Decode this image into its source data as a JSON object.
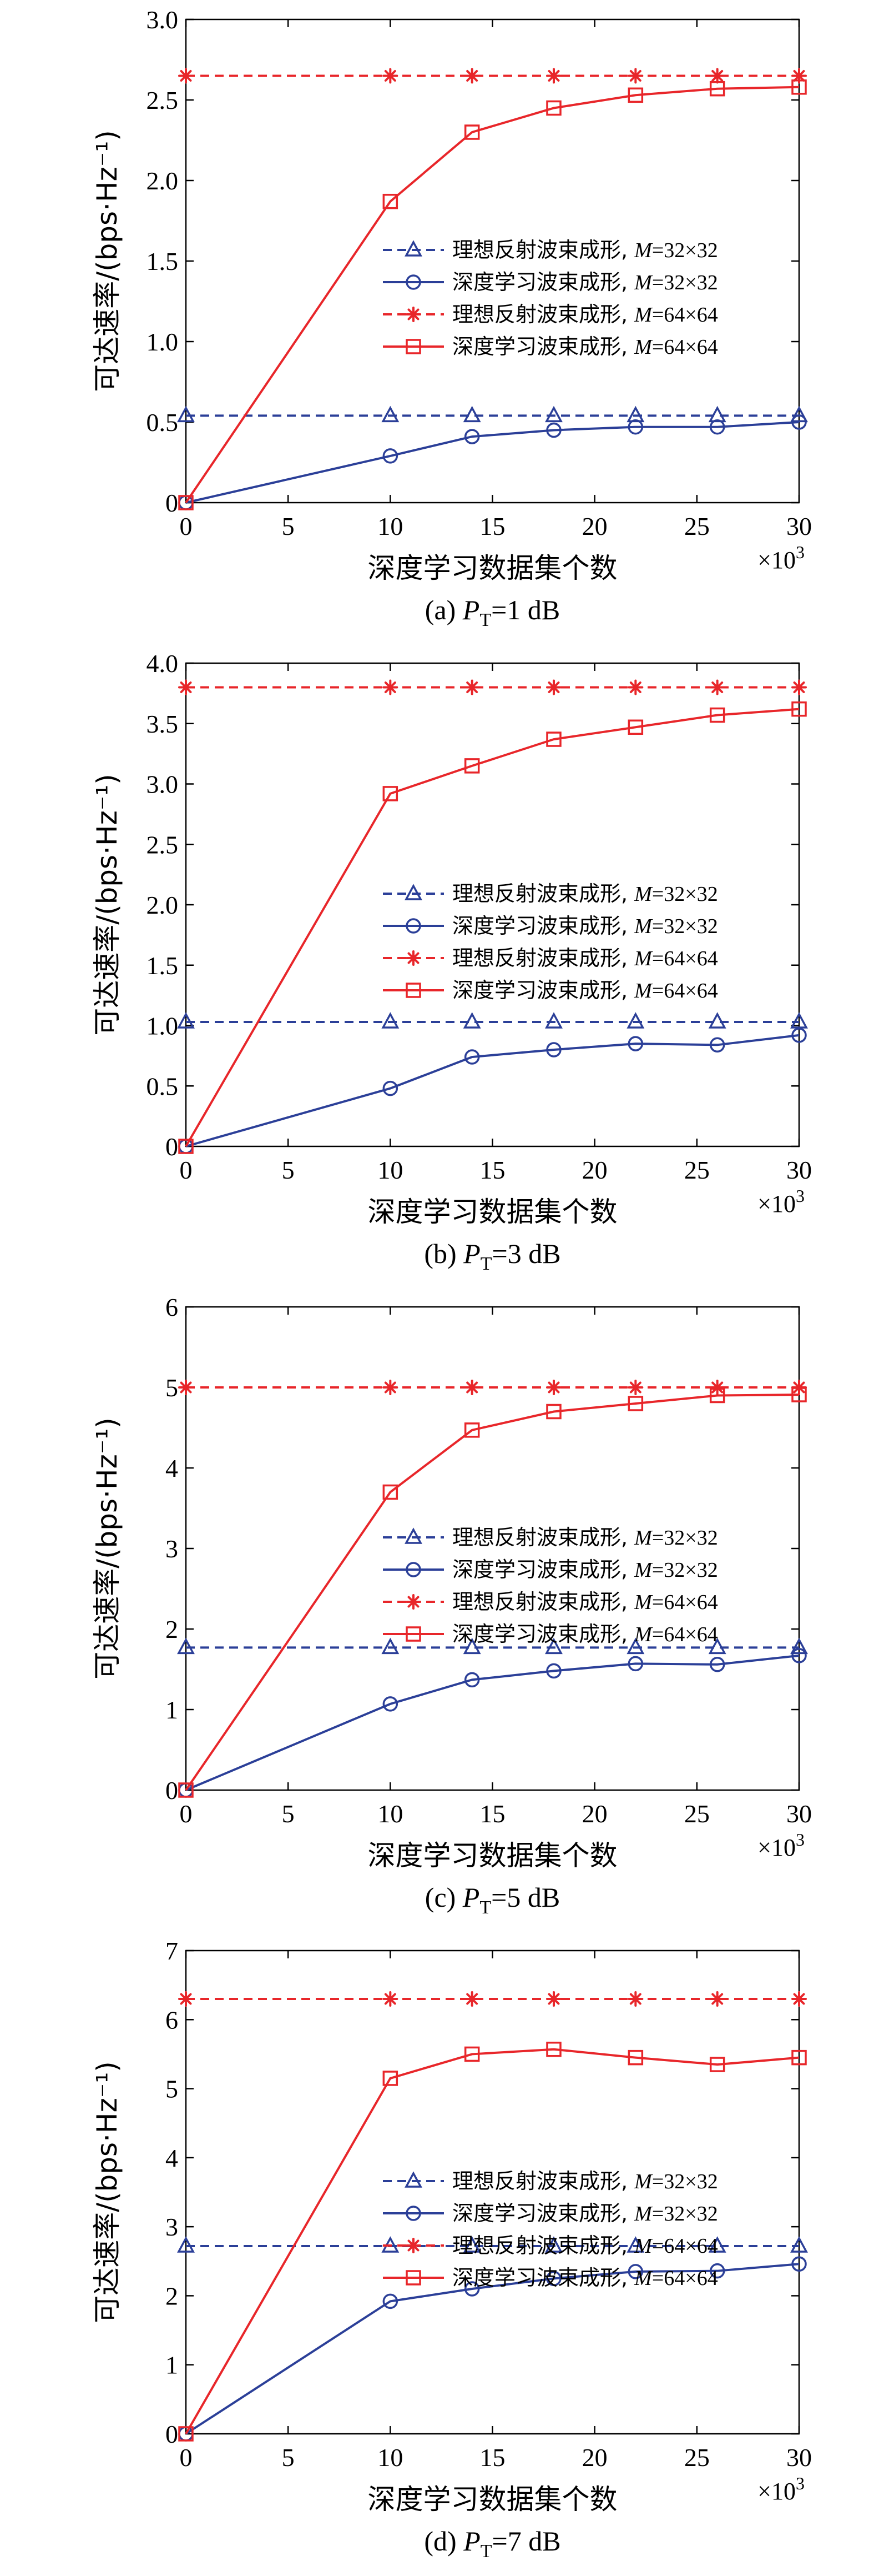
{
  "chart_data": [
    {
      "type": "line",
      "caption": {
        "prefix": "(a) ",
        "symbol": "P",
        "subscript": "T",
        "suffix": "=1 dB"
      },
      "xlabel": "深度学习数据集个数",
      "ylabel": "可达速率/(bps·Hz⁻¹)",
      "x_multiplier": {
        "base": "×10",
        "exp": "3"
      },
      "xlim": [
        0,
        30
      ],
      "ylim": [
        0,
        3.0
      ],
      "xticks": [
        0,
        5,
        10,
        15,
        20,
        25,
        30
      ],
      "yticks": [
        "0",
        "0.5",
        "1.0",
        "1.5",
        "2.0",
        "2.5",
        "3.0"
      ],
      "series": [
        {
          "name": "理想反射波束成形, ",
          "name_var": "M",
          "name_dims": "=32×32",
          "color": "#2b3f98",
          "dash": true,
          "marker": "triangle",
          "x": [
            0,
            10,
            14,
            18,
            22,
            26,
            30
          ],
          "values": [
            0.54,
            0.54,
            0.54,
            0.54,
            0.54,
            0.54,
            0.54
          ]
        },
        {
          "name": "深度学习波束成形, ",
          "name_var": "M",
          "name_dims": "=32×32",
          "color": "#2b3f98",
          "dash": false,
          "marker": "circle",
          "x": [
            0,
            10,
            14,
            18,
            22,
            26,
            30
          ],
          "values": [
            0,
            0.29,
            0.41,
            0.45,
            0.47,
            0.47,
            0.5
          ]
        },
        {
          "name": "理想反射波束成形, ",
          "name_var": "M",
          "name_dims": "=64×64",
          "color": "#e8262a",
          "dash": true,
          "marker": "star",
          "x": [
            0,
            10,
            14,
            18,
            22,
            26,
            30
          ],
          "values": [
            2.65,
            2.65,
            2.65,
            2.65,
            2.65,
            2.65,
            2.65
          ]
        },
        {
          "name": "深度学习波束成形, ",
          "name_var": "M",
          "name_dims": "=64×64",
          "color": "#e8262a",
          "dash": false,
          "marker": "square",
          "x": [
            0,
            10,
            14,
            18,
            22,
            26,
            30
          ],
          "values": [
            0,
            1.87,
            2.3,
            2.45,
            2.53,
            2.57,
            2.58
          ]
        }
      ]
    },
    {
      "type": "line",
      "caption": {
        "prefix": "(b) ",
        "symbol": "P",
        "subscript": "T",
        "suffix": "=3 dB"
      },
      "xlabel": "深度学习数据集个数",
      "ylabel": "可达速率/(bps·Hz⁻¹)",
      "x_multiplier": {
        "base": "×10",
        "exp": "3"
      },
      "xlim": [
        0,
        30
      ],
      "ylim": [
        0,
        4.0
      ],
      "xticks": [
        0,
        5,
        10,
        15,
        20,
        25,
        30
      ],
      "yticks": [
        "0",
        "0.5",
        "1.0",
        "1.5",
        "2.0",
        "2.5",
        "3.0",
        "3.5",
        "4.0"
      ],
      "series": [
        {
          "name": "理想反射波束成形, ",
          "name_var": "M",
          "name_dims": "=32×32",
          "color": "#2b3f98",
          "dash": true,
          "marker": "triangle",
          "x": [
            0,
            10,
            14,
            18,
            22,
            26,
            30
          ],
          "values": [
            1.03,
            1.03,
            1.03,
            1.03,
            1.03,
            1.03,
            1.03
          ]
        },
        {
          "name": "深度学习波束成形, ",
          "name_var": "M",
          "name_dims": "=32×32",
          "color": "#2b3f98",
          "dash": false,
          "marker": "circle",
          "x": [
            0,
            10,
            14,
            18,
            22,
            26,
            30
          ],
          "values": [
            0,
            0.48,
            0.74,
            0.8,
            0.85,
            0.84,
            0.92
          ]
        },
        {
          "name": "理想反射波束成形, ",
          "name_var": "M",
          "name_dims": "=64×64",
          "color": "#e8262a",
          "dash": true,
          "marker": "star",
          "x": [
            0,
            10,
            14,
            18,
            22,
            26,
            30
          ],
          "values": [
            3.8,
            3.8,
            3.8,
            3.8,
            3.8,
            3.8,
            3.8
          ]
        },
        {
          "name": "深度学习波束成形, ",
          "name_var": "M",
          "name_dims": "=64×64",
          "color": "#e8262a",
          "dash": false,
          "marker": "square",
          "x": [
            0,
            10,
            14,
            18,
            22,
            26,
            30
          ],
          "values": [
            0,
            2.92,
            3.15,
            3.37,
            3.47,
            3.57,
            3.62
          ]
        }
      ]
    },
    {
      "type": "line",
      "caption": {
        "prefix": "(c) ",
        "symbol": "P",
        "subscript": "T",
        "suffix": "=5 dB"
      },
      "xlabel": "深度学习数据集个数",
      "ylabel": "可达速率/(bps·Hz⁻¹)",
      "x_multiplier": {
        "base": "×10",
        "exp": "3"
      },
      "xlim": [
        0,
        30
      ],
      "ylim": [
        0,
        6
      ],
      "xticks": [
        0,
        5,
        10,
        15,
        20,
        25,
        30
      ],
      "yticks": [
        "0",
        "1",
        "2",
        "3",
        "4",
        "5",
        "6"
      ],
      "series": [
        {
          "name": "理想反射波束成形, ",
          "name_var": "M",
          "name_dims": "=32×32",
          "color": "#2b3f98",
          "dash": true,
          "marker": "triangle",
          "x": [
            0,
            10,
            14,
            18,
            22,
            26,
            30
          ],
          "values": [
            1.77,
            1.77,
            1.77,
            1.77,
            1.77,
            1.77,
            1.77
          ]
        },
        {
          "name": "深度学习波束成形, ",
          "name_var": "M",
          "name_dims": "=32×32",
          "color": "#2b3f98",
          "dash": false,
          "marker": "circle",
          "x": [
            0,
            10,
            14,
            18,
            22,
            26,
            30
          ],
          "values": [
            0,
            1.07,
            1.37,
            1.48,
            1.57,
            1.56,
            1.67
          ]
        },
        {
          "name": "理想反射波束成形, ",
          "name_var": "M",
          "name_dims": "=64×64",
          "color": "#e8262a",
          "dash": true,
          "marker": "star",
          "x": [
            0,
            10,
            14,
            18,
            22,
            26,
            30
          ],
          "values": [
            5.0,
            5.0,
            5.0,
            5.0,
            5.0,
            5.0,
            5.0
          ]
        },
        {
          "name": "深度学习波束成形, ",
          "name_var": "M",
          "name_dims": "=64×64",
          "color": "#e8262a",
          "dash": false,
          "marker": "square",
          "x": [
            0,
            10,
            14,
            18,
            22,
            26,
            30
          ],
          "values": [
            0,
            3.7,
            4.47,
            4.7,
            4.8,
            4.9,
            4.91
          ]
        }
      ]
    },
    {
      "type": "line",
      "caption": {
        "prefix": "(d) ",
        "symbol": "P",
        "subscript": "T",
        "suffix": "=7 dB"
      },
      "xlabel": "深度学习数据集个数",
      "ylabel": "可达速率/(bps·Hz⁻¹)",
      "x_multiplier": {
        "base": "×10",
        "exp": "3"
      },
      "xlim": [
        0,
        30
      ],
      "ylim": [
        0,
        7
      ],
      "xticks": [
        0,
        5,
        10,
        15,
        20,
        25,
        30
      ],
      "yticks": [
        "0",
        "1",
        "2",
        "3",
        "4",
        "5",
        "6",
        "7"
      ],
      "series": [
        {
          "name": "理想反射波束成形, ",
          "name_var": "M",
          "name_dims": "=32×32",
          "color": "#2b3f98",
          "dash": true,
          "marker": "triangle",
          "x": [
            0,
            10,
            14,
            18,
            22,
            26,
            30
          ],
          "values": [
            2.72,
            2.72,
            2.72,
            2.72,
            2.72,
            2.72,
            2.72
          ]
        },
        {
          "name": "深度学习波束成形, ",
          "name_var": "M",
          "name_dims": "=32×32",
          "color": "#2b3f98",
          "dash": false,
          "marker": "circle",
          "x": [
            0,
            10,
            14,
            18,
            22,
            26,
            30
          ],
          "values": [
            0,
            1.92,
            2.1,
            2.25,
            2.35,
            2.36,
            2.46
          ]
        },
        {
          "name": "理想反射波束成形, ",
          "name_var": "M",
          "name_dims": "=64×64",
          "color": "#e8262a",
          "dash": true,
          "marker": "star",
          "x": [
            0,
            10,
            14,
            18,
            22,
            26,
            30
          ],
          "values": [
            6.3,
            6.3,
            6.3,
            6.3,
            6.3,
            6.3,
            6.3
          ]
        },
        {
          "name": "深度学习波束成形, ",
          "name_var": "M",
          "name_dims": "=64×64",
          "color": "#e8262a",
          "dash": false,
          "marker": "square",
          "x": [
            0,
            10,
            14,
            18,
            22,
            26,
            30
          ],
          "values": [
            0,
            5.15,
            5.5,
            5.57,
            5.45,
            5.35,
            5.45
          ]
        }
      ]
    }
  ]
}
